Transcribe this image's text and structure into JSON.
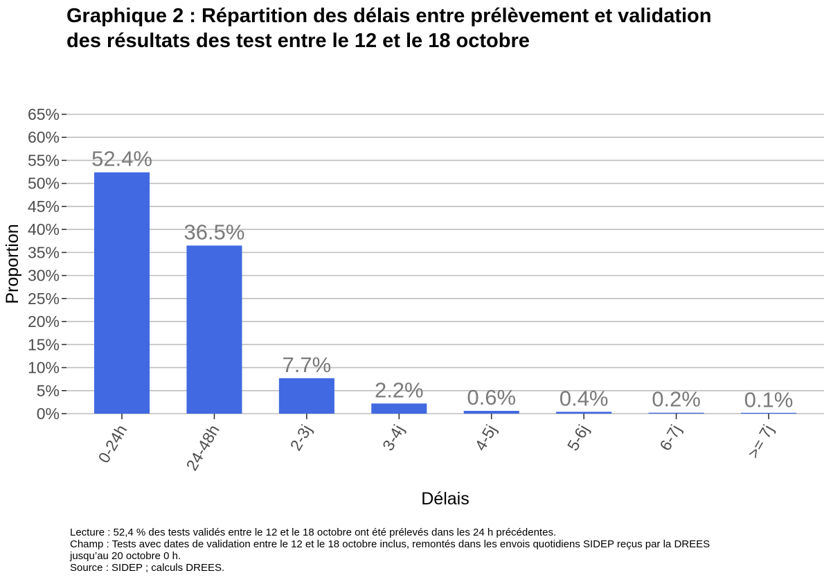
{
  "chart_data": {
    "type": "bar",
    "title_lines": [
      "Graphique 2 : Répartition des délais entre prélèvement et validation",
      "des résultats des test entre le 12 et le 18 octobre"
    ],
    "xlabel": "Délais",
    "ylabel": "Proportion",
    "categories": [
      "0-24h",
      "24-48h",
      "2-3j",
      "3-4j",
      "4-5j",
      "5-6j",
      "6-7j",
      ">= 7j"
    ],
    "values": [
      52.4,
      36.5,
      7.7,
      2.2,
      0.6,
      0.4,
      0.2,
      0.1
    ],
    "data_labels": [
      "52.4%",
      "36.5%",
      "7.7%",
      "2.2%",
      "0.6%",
      "0.4%",
      "0.2%",
      "0.1%"
    ],
    "y_ticks": [
      "0%",
      "5%",
      "10%",
      "15%",
      "20%",
      "25%",
      "30%",
      "35%",
      "40%",
      "45%",
      "50%",
      "55%",
      "60%",
      "65%"
    ],
    "ylim": [
      0,
      65
    ],
    "grid": true,
    "bar_color": "#4169E1",
    "label_color": "#7a7a7a",
    "grid_color": "#bebebe"
  },
  "notes": {
    "lecture": "Lecture : 52,4 % des tests validés entre le 12 et le 18 octobre ont été prélevés dans les 24 h précédentes.",
    "champ_line1": "Champ : Tests avec dates de validation entre le 12 et le 18 octobre inclus, remontés dans les envois quotidiens SIDEP reçus par la DREES",
    "champ_line2": "jusqu’au 20 octobre 0 h.",
    "source": "Source : SIDEP ; calculs DREES."
  }
}
